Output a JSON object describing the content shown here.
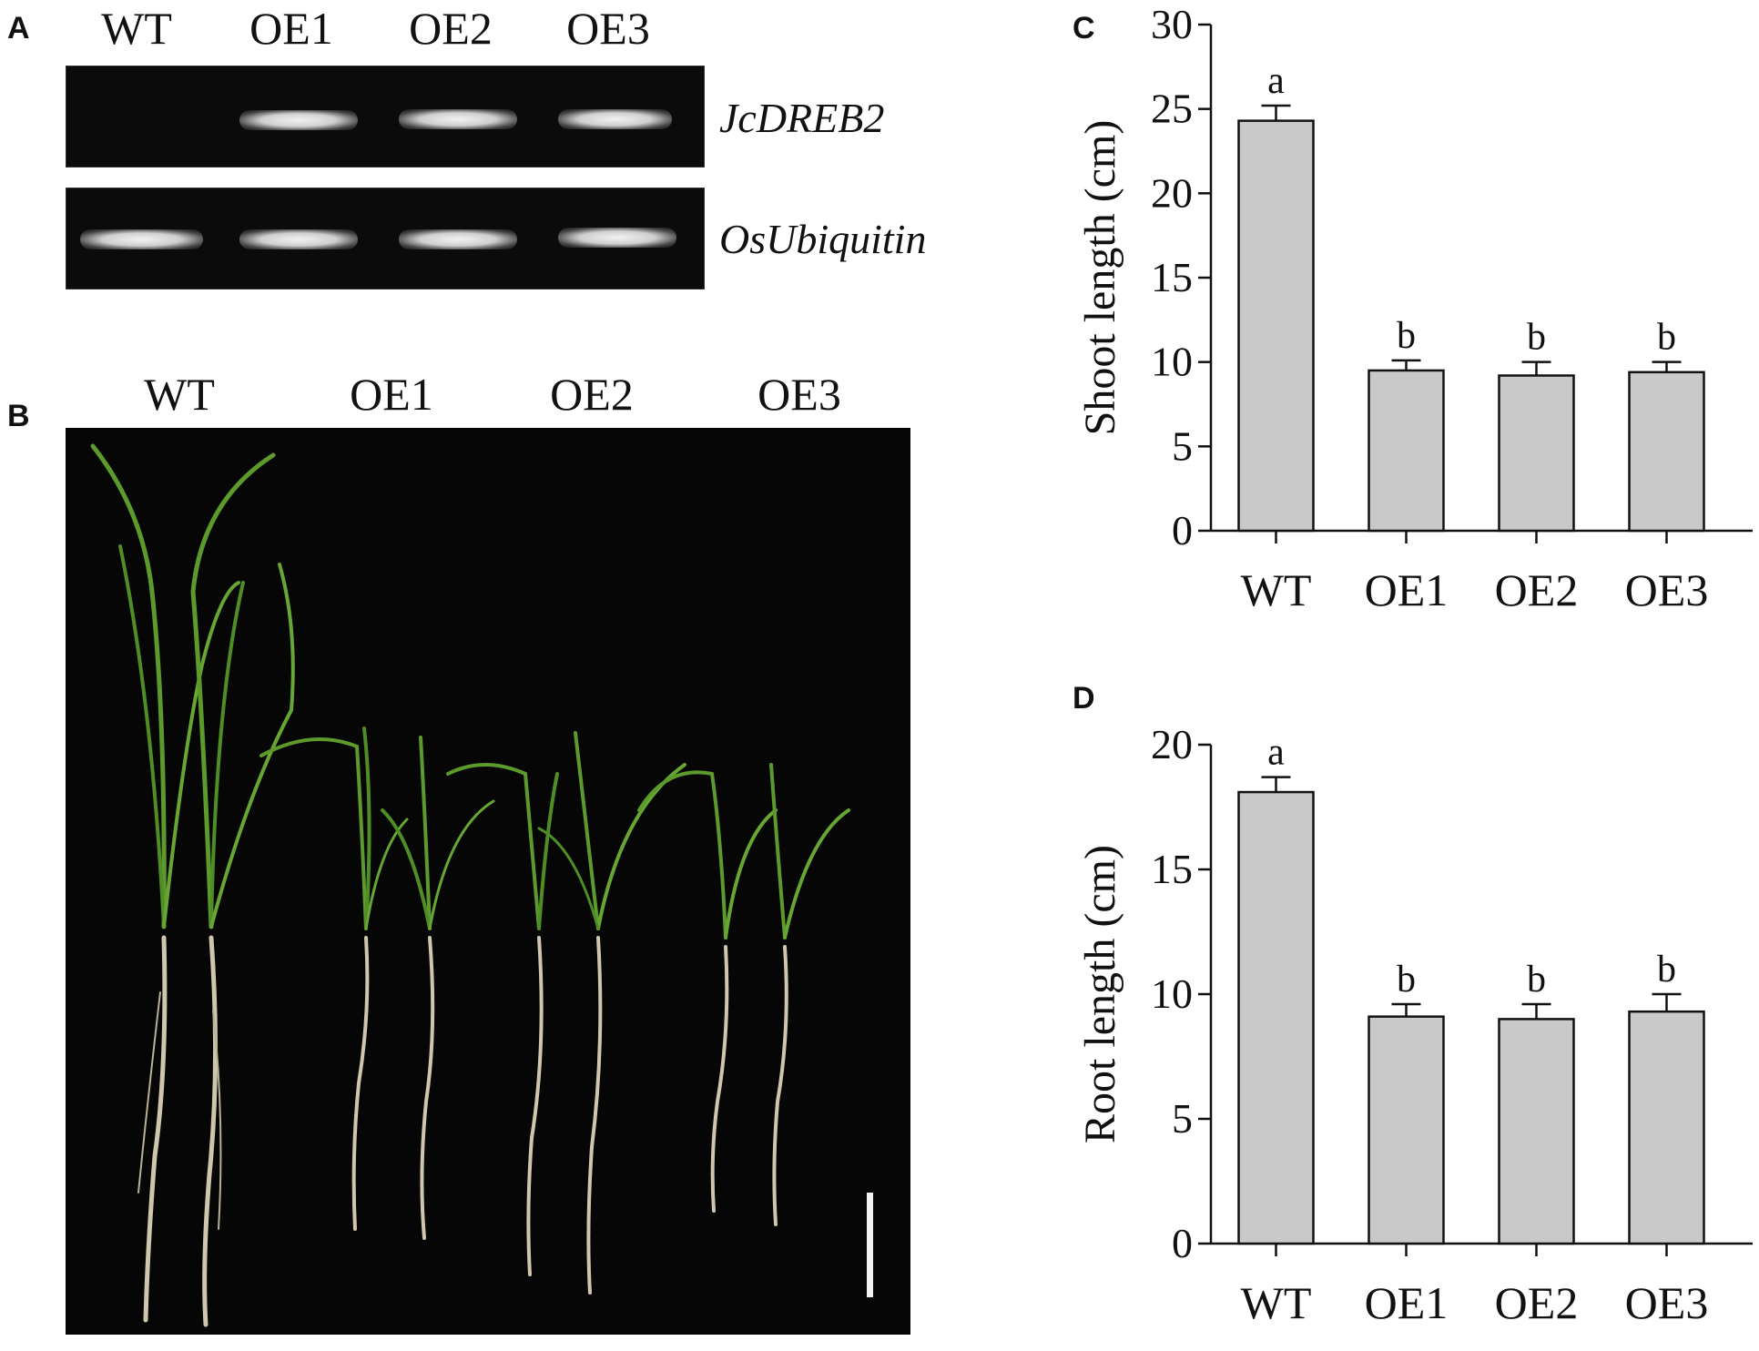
{
  "figure": {
    "panel_a": {
      "letter": "A",
      "lanes": [
        "WT",
        "OE1",
        "OE2",
        "OE3"
      ],
      "genes": [
        "JcDREB2",
        "OsUbiquitin"
      ]
    },
    "panel_b": {
      "letter": "B",
      "lanes": [
        "WT",
        "OE1",
        "OE2",
        "OE3"
      ]
    }
  },
  "chart_data": [
    {
      "panel": "C",
      "type": "bar",
      "categories": [
        "WT",
        "OE1",
        "OE2",
        "OE3"
      ],
      "values": [
        24.3,
        9.5,
        9.2,
        9.4
      ],
      "errors": [
        0.9,
        0.6,
        0.8,
        0.6
      ],
      "annotations": [
        "a",
        "b",
        "b",
        "b"
      ],
      "title": "",
      "xlabel": "",
      "ylabel": "Shoot length (cm)",
      "ylim": [
        0,
        30
      ],
      "yticks": [
        0,
        5,
        10,
        15,
        20,
        25,
        30
      ],
      "grid": false,
      "bar_color": "#c9c9c9"
    },
    {
      "panel": "D",
      "type": "bar",
      "categories": [
        "WT",
        "OE1",
        "OE2",
        "OE3"
      ],
      "values": [
        18.1,
        9.1,
        9.0,
        9.3
      ],
      "errors": [
        0.6,
        0.5,
        0.6,
        0.7
      ],
      "annotations": [
        "a",
        "b",
        "b",
        "b"
      ],
      "title": "",
      "xlabel": "",
      "ylabel": "Root length (cm)",
      "ylim": [
        0,
        20
      ],
      "yticks": [
        0,
        5,
        10,
        15,
        20
      ],
      "grid": false,
      "bar_color": "#c9c9c9"
    }
  ]
}
